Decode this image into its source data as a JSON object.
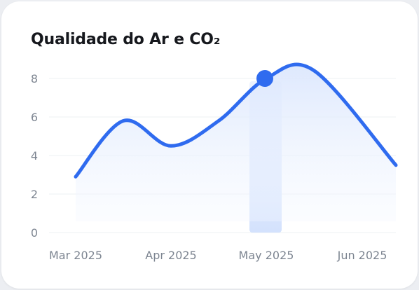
{
  "chart_data": {
    "type": "line",
    "title": "Qualidade do Ar e CO₂",
    "categories": [
      "Mar 2025",
      "Apr 2025",
      "May 2025",
      "Jun 2025"
    ],
    "x": [
      0,
      0.5,
      1,
      1.5,
      2,
      2.5,
      3.35
    ],
    "series": [
      {
        "values": [
          2.9,
          5.8,
          4.5,
          5.8,
          8.0,
          8.4,
          3.5
        ]
      }
    ],
    "yticks": [
      0,
      2,
      4,
      6,
      8
    ],
    "ylim": [
      0,
      8.8
    ],
    "highlight": {
      "category": "May 2025",
      "value": 8.0
    },
    "grid": true,
    "colors": {
      "line": "#2f6bef",
      "fill": "#e6eefe",
      "highlight_bar": "#dbe6fd",
      "grid": "#eef0f3",
      "axis_text": "#7d8591"
    }
  }
}
